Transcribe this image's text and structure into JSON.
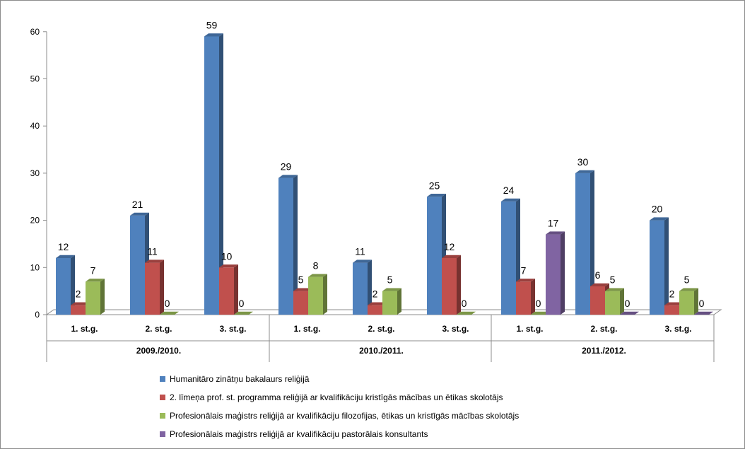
{
  "chart_data": {
    "type": "bar",
    "y_ticks": [
      "0",
      "10",
      "20",
      "30",
      "40",
      "50",
      "60"
    ],
    "ylim": [
      0,
      60
    ],
    "groups": [
      {
        "label": "2009./2010.",
        "categories": [
          "1. st.g.",
          "2. st.g.",
          "3. st.g."
        ]
      },
      {
        "label": "2010./2011.",
        "categories": [
          "1. st.g.",
          "2. st.g.",
          "3. st.g."
        ]
      },
      {
        "label": "2011./2012.",
        "categories": [
          "1. st.g.",
          "2. st.g.",
          "3. st.g."
        ]
      }
    ],
    "series": [
      {
        "name": "Humanitāro zinātņu bakalaurs reliģijā",
        "color": "#4f81bd",
        "values": [
          12,
          21,
          59,
          29,
          11,
          25,
          24,
          30,
          20
        ]
      },
      {
        "name": "2. līmeņa prof. st. programma reliģijā ar kvalifikāciju kristīgās mācības un ētikas skolotājs",
        "color": "#c0504d",
        "values": [
          2,
          11,
          10,
          5,
          2,
          12,
          7,
          6,
          2
        ]
      },
      {
        "name": "Profesionālais maģistrs reliģijā ar kvalifikāciju filozofijas, ētikas un kristīgās mācības skolotājs",
        "color": "#9bbb59",
        "values": [
          7,
          0,
          0,
          8,
          5,
          0,
          0,
          5,
          5
        ]
      },
      {
        "name": "Profesionālais maģistrs reliģijā ar kvalifikāciju pastorālais konsultants",
        "color": "#8064a2",
        "values": [
          null,
          null,
          null,
          null,
          null,
          null,
          17,
          0,
          0
        ]
      }
    ],
    "grid": false,
    "legend_position": "bottom"
  }
}
